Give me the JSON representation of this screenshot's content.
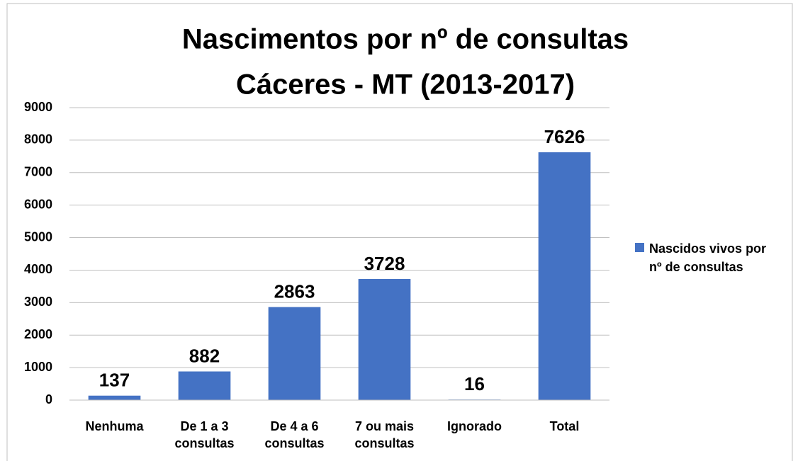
{
  "chart_data": {
    "type": "bar",
    "title": [
      "Nascimentos por nº de consultas",
      "Cáceres - MT  (2013-2017)"
    ],
    "categories": [
      "Nenhuma",
      "De 1 a 3 consultas",
      "De 4 a 6 consultas",
      "7 ou mais consultas",
      "Ignorado",
      "Total"
    ],
    "series": [
      {
        "name": "Nascidos vivos por nº de consultas",
        "color": "#4472c4",
        "values": [
          137,
          882,
          2863,
          3728,
          16,
          7626
        ]
      }
    ],
    "ylim": [
      0,
      9000
    ],
    "yticks": [
      0,
      1000,
      2000,
      3000,
      4000,
      5000,
      6000,
      7000,
      8000,
      9000
    ],
    "grid": true,
    "legend": "right"
  }
}
